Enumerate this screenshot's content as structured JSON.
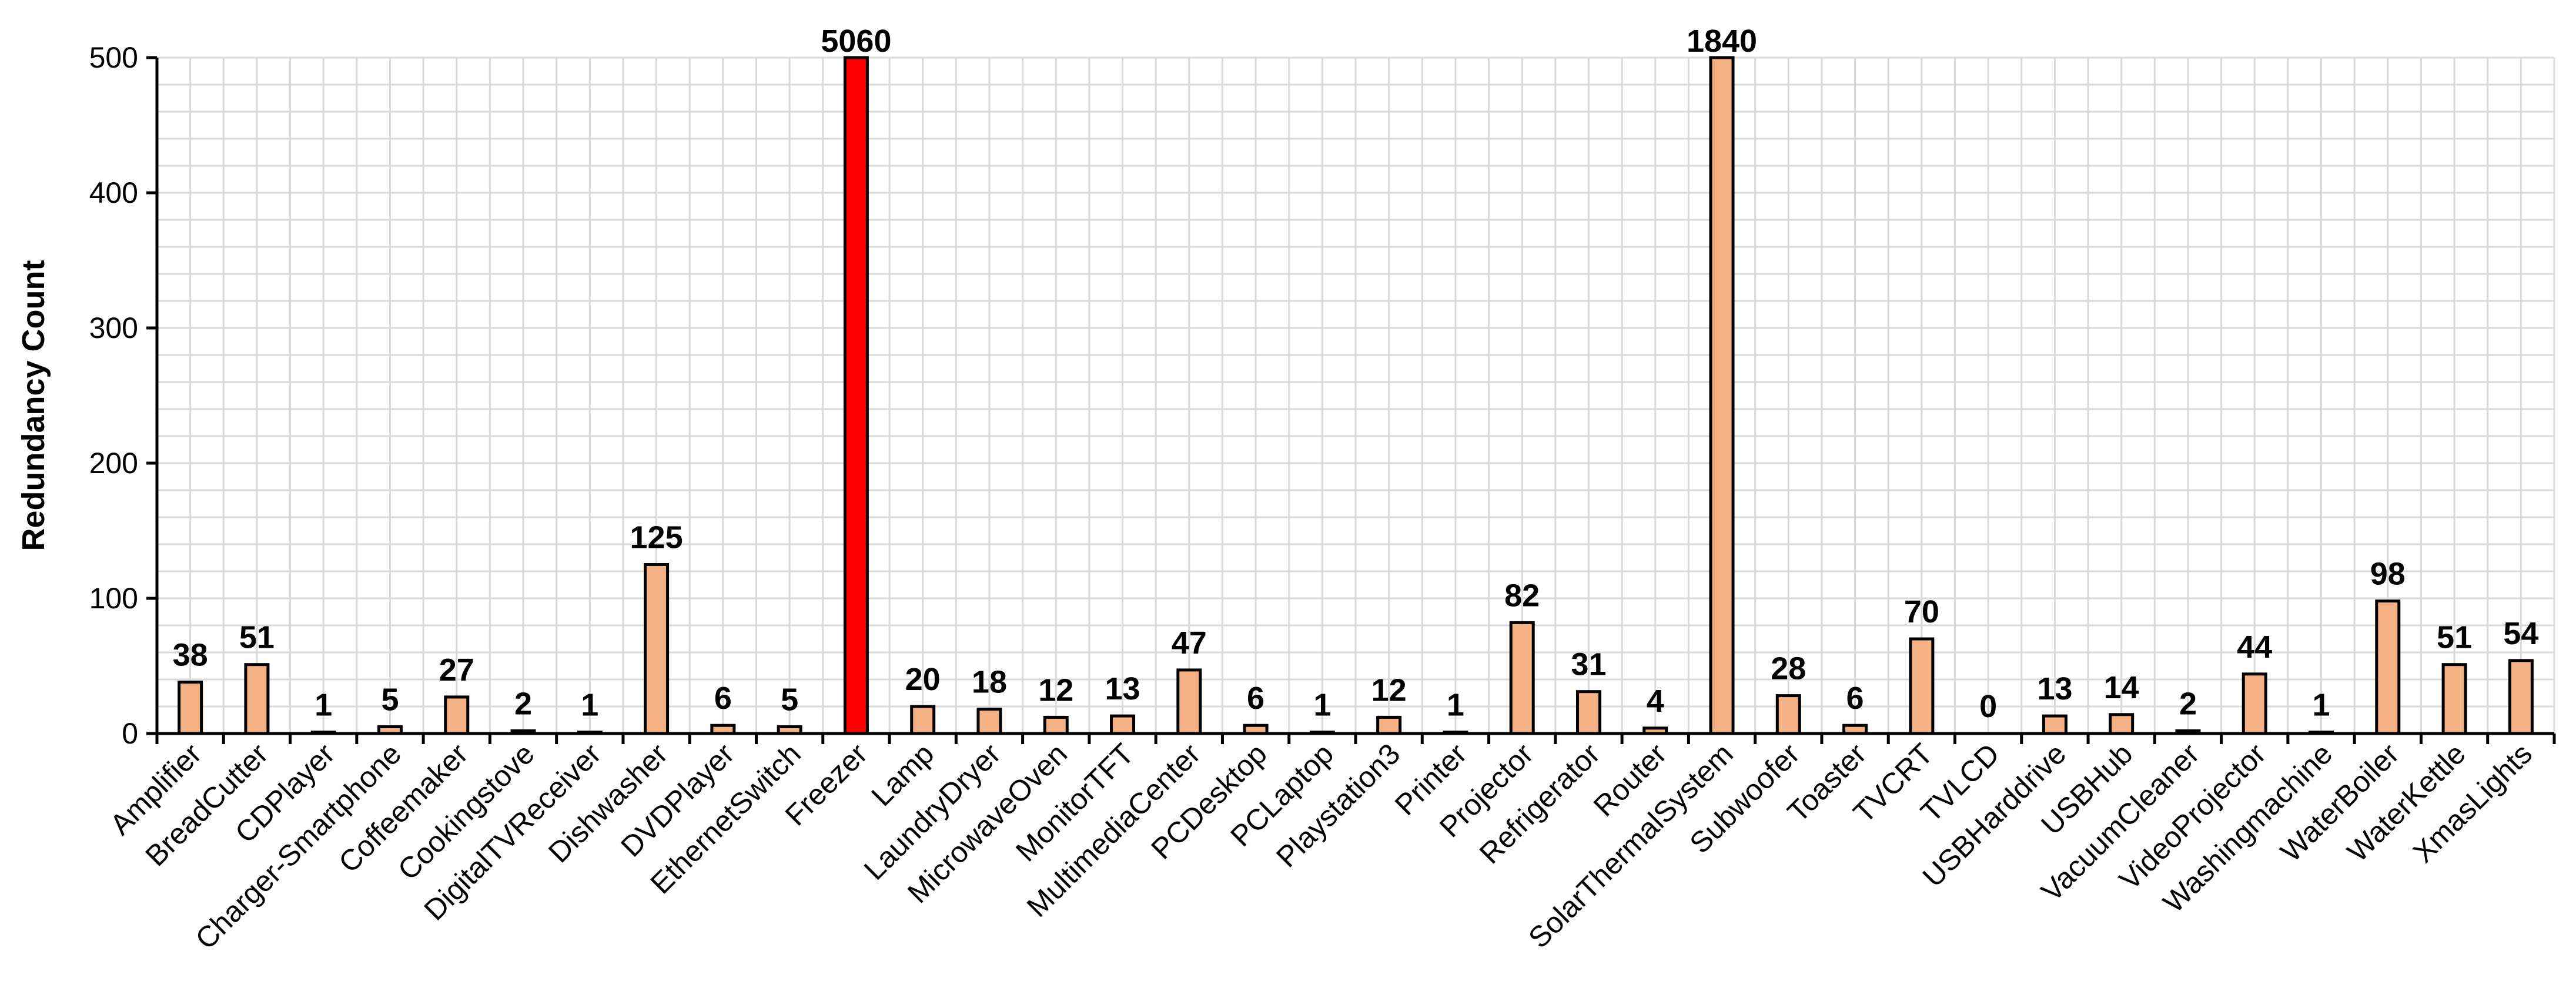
{
  "chart_data": {
    "type": "bar",
    "title": "",
    "xlabel": "",
    "ylabel": "Redundancy Count",
    "ylim": [
      0,
      500
    ],
    "yticks": [
      0,
      100,
      200,
      300,
      400,
      500
    ],
    "grid": true,
    "legend": "none",
    "bar_color": "#f4b183",
    "highlight_color": "#ff0000",
    "highlight_category": "Freezer",
    "categories": [
      "Amplifier",
      "BreadCutter",
      "CDPlayer",
      "Charger-Smartphone",
      "Coffeemaker",
      "Cookingstove",
      "DigitalTVReceiver",
      "Dishwasher",
      "DVDPlayer",
      "EthernetSwitch",
      "Freezer",
      "Lamp",
      "LaundryDryer",
      "MicrowaveOven",
      "MonitorTFT",
      "MultimediaCenter",
      "PCDesktop",
      "PCLaptop",
      "Playstation3",
      "Printer",
      "Projector",
      "Refrigerator",
      "Router",
      "SolarThermalSystem",
      "Subwoofer",
      "Toaster",
      "TVCRT",
      "TVLCD",
      "USBHarddrive",
      "USBHub",
      "VacuumCleaner",
      "VideoProjector",
      "Washingmachine",
      "WaterBoiler",
      "WaterKettle",
      "XmasLights"
    ],
    "values": [
      38,
      51,
      1,
      5,
      27,
      2,
      1,
      125,
      6,
      5,
      5060,
      20,
      18,
      12,
      13,
      47,
      6,
      1,
      12,
      1,
      82,
      31,
      4,
      1840,
      28,
      6,
      70,
      0,
      13,
      14,
      2,
      44,
      1,
      98,
      51,
      54
    ],
    "data_labels": [
      "38",
      "51",
      "1",
      "5",
      "27",
      "2",
      "1",
      "125",
      "6",
      "5",
      "5060",
      "20",
      "18",
      "12",
      "13",
      "47",
      "6",
      "1",
      "12",
      "1",
      "82",
      "31",
      "4",
      "1840",
      "28",
      "6",
      "70",
      "0",
      "13",
      "14",
      "2",
      "44",
      "1",
      "98",
      "51",
      "54"
    ]
  }
}
